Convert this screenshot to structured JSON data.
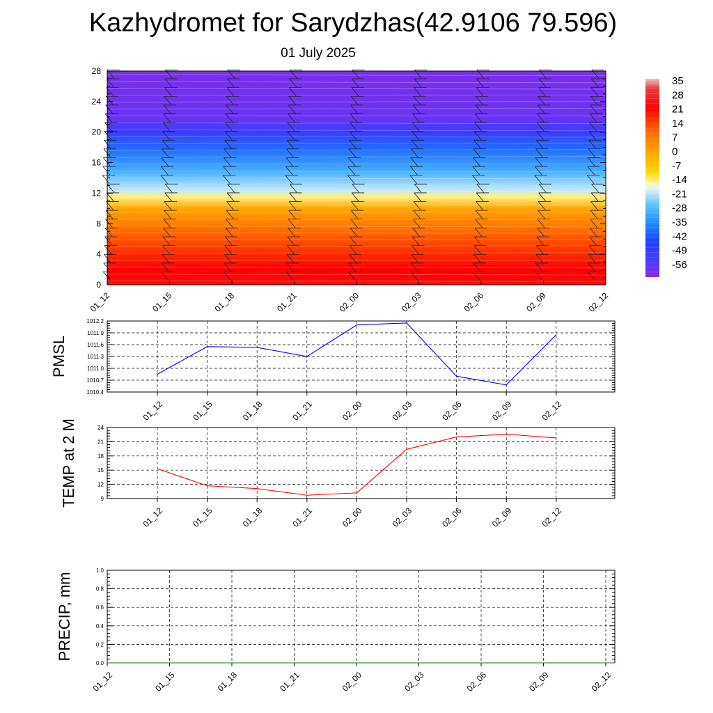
{
  "header": {
    "title": "Kazhydromet for Sarydzhas(42.9106 79.596)",
    "date": "01 July 2025"
  },
  "chart_data": [
    {
      "type": "heatmap",
      "name": "cross-section",
      "x_categories": [
        "01_12",
        "01_15",
        "01_18",
        "01_21",
        "02_00",
        "02_03",
        "02_06",
        "02_09",
        "02_12"
      ],
      "y_ticks": [
        0,
        4,
        8,
        12,
        16,
        20,
        24,
        28
      ],
      "ylim": [
        0,
        28
      ],
      "colorbar_labels": [
        "35",
        "28",
        "21",
        "14",
        "7",
        "0",
        "-7",
        "-14",
        "-21",
        "-28",
        "-35",
        "-42",
        "-49",
        "-56"
      ],
      "temperature_profile": [
        {
          "h": 0,
          "t": 25
        },
        {
          "h": 2,
          "t": 22
        },
        {
          "h": 4,
          "t": 18
        },
        {
          "h": 6,
          "t": 14
        },
        {
          "h": 8,
          "t": 9
        },
        {
          "h": 10,
          "t": 4
        },
        {
          "h": 11.5,
          "t": -10
        },
        {
          "h": 12.5,
          "t": -18
        },
        {
          "h": 15,
          "t": -30
        },
        {
          "h": 18,
          "t": -40
        },
        {
          "h": 20,
          "t": -52
        },
        {
          "h": 22,
          "t": -60
        },
        {
          "h": 28,
          "t": -62
        }
      ],
      "grid": false
    },
    {
      "type": "line",
      "name": "pmsl",
      "ylabel": "PMSL",
      "categories": [
        "01_12",
        "01_15",
        "01_18",
        "01_21",
        "02_00",
        "02_03",
        "02_06",
        "02_09",
        "02_12"
      ],
      "values": [
        1010.85,
        1011.55,
        1011.53,
        1011.3,
        1012.1,
        1012.15,
        1010.8,
        1010.58,
        1011.85
      ],
      "yticks": [
        "1010.4",
        "1010.7",
        "1011.0",
        "1011.3",
        "1011.6",
        "1011.9",
        "1012.2"
      ],
      "ylim": [
        1010.4,
        1012.2
      ],
      "color": "#0000ff",
      "grid": true
    },
    {
      "type": "line",
      "name": "temp2m",
      "ylabel": "TEMP at 2 M",
      "categories": [
        "01_12",
        "01_15",
        "01_18",
        "01_21",
        "02_00",
        "02_03",
        "02_06",
        "02_09",
        "02_12"
      ],
      "values": [
        15.3,
        11.7,
        11.1,
        9.7,
        10.2,
        19.4,
        22.0,
        22.6,
        21.8
      ],
      "yticks": [
        "9",
        "12",
        "15",
        "18",
        "21",
        "24"
      ],
      "ylim": [
        9,
        24
      ],
      "color": "#ff0000",
      "grid": true
    },
    {
      "type": "line",
      "name": "precip",
      "ylabel": "PRECIP, mm",
      "categories": [
        "01_12",
        "01_15",
        "01_18",
        "01_21",
        "02_00",
        "02_03",
        "02_06",
        "02_09",
        "02_12"
      ],
      "values": [
        0,
        0,
        0,
        0,
        0,
        0,
        0,
        0,
        0
      ],
      "yticks": [
        "0.0",
        "0.2",
        "0.4",
        "0.6",
        "0.8",
        "1.0"
      ],
      "ylim": [
        0,
        1
      ],
      "color": "#008000",
      "grid": true
    }
  ]
}
